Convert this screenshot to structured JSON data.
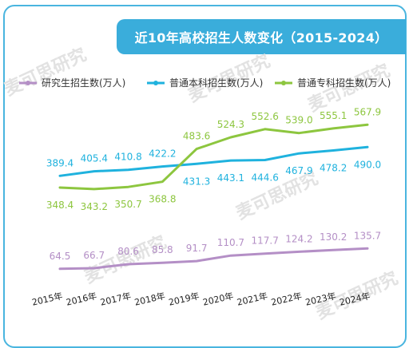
{
  "chart_data": {
    "type": "line",
    "title": "近10年高校招生人数变化（2015-2024）",
    "categories": [
      "2015年",
      "2016年",
      "2017年",
      "2018年",
      "2019年",
      "2020年",
      "2021年",
      "2022年",
      "2023年",
      "2024年"
    ],
    "series": [
      {
        "name": "研究生招生数(万人)",
        "color": "#b48fc6",
        "values": [
          64.5,
          66.7,
          80.6,
          85.8,
          91.7,
          110.7,
          117.7,
          124.2,
          130.2,
          135.7
        ]
      },
      {
        "name": "普通本科招生数(万人)",
        "color": "#1fb2de",
        "values": [
          389.4,
          405.4,
          410.8,
          422.2,
          431.3,
          443.1,
          444.6,
          467.9,
          478.2,
          490.0
        ]
      },
      {
        "name": "普通专科招生数(万人)",
        "color": "#8dc63f",
        "values": [
          348.4,
          343.2,
          350.7,
          368.8,
          483.6,
          524.3,
          552.6,
          539.0,
          555.1,
          567.9
        ]
      }
    ],
    "value_labels": [
      [
        "64.5",
        "66.7",
        "80.6",
        "85.8",
        "91.7",
        "110.7",
        "117.7",
        "124.2",
        "130.2",
        "135.7"
      ],
      [
        "389.4",
        "405.4",
        "410.8",
        "422.2",
        "431.3",
        "443.1",
        "444.6",
        "467.9",
        "478.2",
        "490.0"
      ],
      [
        "348.4",
        "343.2",
        "350.7",
        "368.8",
        "483.6",
        "524.3",
        "552.6",
        "539.0",
        "555.1",
        "567.9"
      ]
    ],
    "xlabel": "",
    "ylabel": "",
    "grid": false,
    "legend_position": "top-left"
  },
  "watermark": "麦可思研究"
}
